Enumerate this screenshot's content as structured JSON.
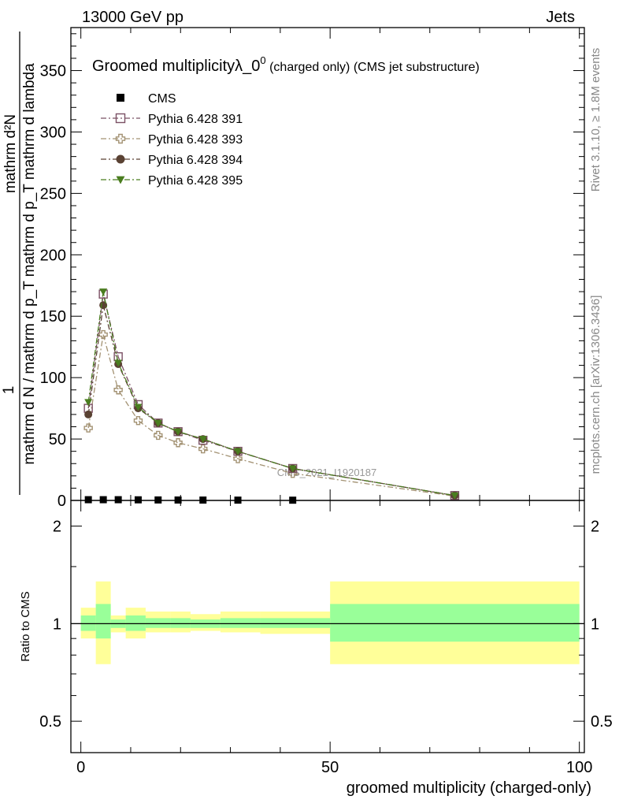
{
  "header": {
    "left": "13000 GeV pp",
    "right": "Jets"
  },
  "side_labels": {
    "rivet": "Rivet 3.1.10, ≥ 1.8M events",
    "mcplots": "mcplots.cern.ch [arXiv:1306.3436]"
  },
  "chart_data": [
    {
      "type": "line",
      "title": "Groomed multiplicityλ_0",
      "title_sup": "0",
      "title_suffix": " (charged only) (CMS jet substructure)",
      "watermark": "CMS_2021_I1920187",
      "ylabel_numerator": "mathrm d²N",
      "ylabel_one": "1",
      "ylabel_denominator": "mathrm d N / mathrm d p_T mathrm d p_T mathrm d lambda",
      "xlim": [
        -2,
        101
      ],
      "ylim": [
        0,
        385
      ],
      "yticks": [
        0,
        50,
        100,
        150,
        200,
        250,
        300,
        350
      ],
      "grid": false,
      "legend_position": "top-left",
      "series": [
        {
          "name": "CMS",
          "color": "#000000",
          "marker": "filled-square",
          "x": [
            1.5,
            4.5,
            7.5,
            11.5,
            15.5,
            19.5,
            24.5,
            31.5,
            42.5,
            75.0
          ],
          "y": [
            0.6,
            0.6,
            0.6,
            0.5,
            0.4,
            0.35,
            0.3,
            0.25,
            0.2,
            0.02
          ]
        },
        {
          "name": "Pythia 6.428 391",
          "color": "#7b5064",
          "marker": "open-square",
          "x": [
            1.5,
            4.5,
            7.5,
            11.5,
            15.5,
            19.5,
            24.5,
            31.5,
            42.5,
            75.0
          ],
          "y": [
            75,
            168,
            117,
            78,
            63,
            56,
            49,
            40,
            26,
            4
          ]
        },
        {
          "name": "Pythia 6.428 393",
          "color": "#a39273",
          "marker": "open-cross",
          "x": [
            1.5,
            4.5,
            7.5,
            11.5,
            15.5,
            19.5,
            24.5,
            31.5,
            42.5,
            75.0
          ],
          "y": [
            59,
            135,
            90,
            65,
            53,
            47,
            42,
            34,
            22,
            3.5
          ]
        },
        {
          "name": "Pythia 6.428 394",
          "color": "#5a4233",
          "marker": "filled-circle",
          "x": [
            1.5,
            4.5,
            7.5,
            11.5,
            15.5,
            19.5,
            24.5,
            31.5,
            42.5,
            75.0
          ],
          "y": [
            70,
            159,
            111,
            75,
            63,
            56,
            50,
            40,
            26,
            4
          ]
        },
        {
          "name": "Pythia 6.428 395",
          "color": "#4a7d1f",
          "marker": "filled-triangle-down",
          "x": [
            1.5,
            4.5,
            7.5,
            11.5,
            15.5,
            19.5,
            24.5,
            31.5,
            42.5,
            75.0
          ],
          "y": [
            80,
            170,
            112,
            76,
            63,
            56,
            50,
            40,
            26,
            4
          ]
        }
      ]
    },
    {
      "type": "area",
      "ylabel": "Ratio to CMS",
      "xlabel": "groomed multiplicity (charged-only)",
      "xlim": [
        -2,
        101
      ],
      "ylim": [
        0.4,
        2.4
      ],
      "yscale": "log",
      "yticks": [
        0.5,
        1,
        2
      ],
      "xticks": [
        0,
        50,
        100
      ],
      "bands": {
        "stat_color": "#99ff99",
        "total_color": "#ffff99",
        "bin_edges": [
          0,
          3,
          6,
          9,
          13,
          18,
          22,
          28,
          36,
          50,
          100
        ],
        "total_lo": [
          0.9,
          0.75,
          0.94,
          0.9,
          0.94,
          0.94,
          0.95,
          0.94,
          0.93,
          0.75
        ],
        "total_hi": [
          1.12,
          1.35,
          1.06,
          1.12,
          1.09,
          1.09,
          1.07,
          1.09,
          1.09,
          1.35
        ],
        "stat_lo": [
          0.95,
          0.9,
          0.97,
          0.95,
          0.97,
          0.97,
          0.97,
          0.97,
          0.97,
          0.88
        ],
        "stat_hi": [
          1.06,
          1.15,
          1.03,
          1.06,
          1.04,
          1.04,
          1.03,
          1.04,
          1.04,
          1.15
        ]
      }
    }
  ]
}
